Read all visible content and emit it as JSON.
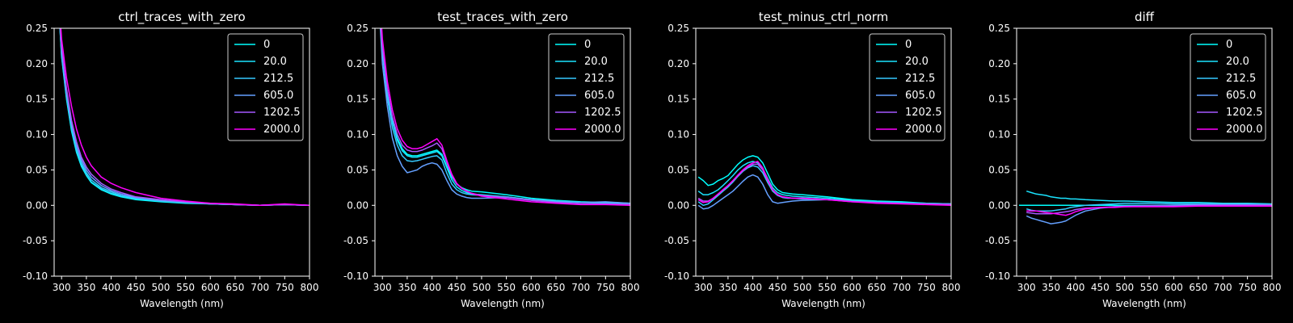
{
  "figure": {
    "background": "#000000",
    "foreground": "#ffffff"
  },
  "legend_entries": [
    "0",
    "20.0",
    "212.5",
    "605.0",
    "1202.5",
    "2000.0"
  ],
  "series_colors": [
    "#00ffff",
    "#1ae4ff",
    "#36c9ff",
    "#64a0ff",
    "#a659ff",
    "#ff00ff"
  ],
  "chart_data": [
    {
      "type": "line",
      "title": "ctrl_traces_with_zero",
      "xlabel": "Wavelength (nm)",
      "ylabel": "",
      "xlim": [
        285,
        800
      ],
      "ylim": [
        -0.1,
        0.25
      ],
      "xticks": [
        300,
        350,
        400,
        450,
        500,
        550,
        600,
        650,
        700,
        750,
        800
      ],
      "yticks": [
        -0.1,
        -0.05,
        0.0,
        0.05,
        0.1,
        0.15,
        0.2,
        0.25
      ],
      "grid": false,
      "legend": "top-right",
      "x": [
        290,
        300,
        310,
        320,
        330,
        340,
        350,
        360,
        380,
        400,
        420,
        450,
        500,
        550,
        600,
        650,
        700,
        750,
        800
      ],
      "series": [
        {
          "name": "0",
          "values": [
            0.33,
            0.21,
            0.15,
            0.105,
            0.075,
            0.055,
            0.042,
            0.032,
            0.022,
            0.016,
            0.012,
            0.008,
            0.005,
            0.003,
            0.002,
            0.001,
            0.0,
            0.001,
            0.0
          ]
        },
        {
          "name": "20.0",
          "values": [
            0.33,
            0.212,
            0.152,
            0.107,
            0.077,
            0.057,
            0.043,
            0.033,
            0.023,
            0.017,
            0.013,
            0.009,
            0.006,
            0.004,
            0.002,
            0.001,
            0.0,
            0.001,
            0.0
          ]
        },
        {
          "name": "212.5",
          "values": [
            0.33,
            0.215,
            0.155,
            0.11,
            0.08,
            0.06,
            0.046,
            0.036,
            0.025,
            0.019,
            0.014,
            0.01,
            0.006,
            0.004,
            0.002,
            0.001,
            0.0,
            0.001,
            0.0
          ]
        },
        {
          "name": "605.0",
          "values": [
            0.33,
            0.22,
            0.16,
            0.115,
            0.085,
            0.064,
            0.05,
            0.04,
            0.028,
            0.021,
            0.016,
            0.011,
            0.007,
            0.004,
            0.002,
            0.001,
            0.0,
            0.001,
            0.0
          ]
        },
        {
          "name": "1202.5",
          "values": [
            0.33,
            0.225,
            0.165,
            0.12,
            0.09,
            0.068,
            0.054,
            0.044,
            0.031,
            0.023,
            0.018,
            0.012,
            0.008,
            0.005,
            0.003,
            0.001,
            0.0,
            0.001,
            0.0
          ]
        },
        {
          "name": "2000.0",
          "values": [
            0.34,
            0.235,
            0.18,
            0.14,
            0.108,
            0.085,
            0.068,
            0.056,
            0.04,
            0.031,
            0.025,
            0.018,
            0.01,
            0.006,
            0.003,
            0.002,
            0.0,
            0.002,
            0.0
          ]
        }
      ]
    },
    {
      "type": "line",
      "title": "test_traces_with_zero",
      "xlabel": "Wavelength (nm)",
      "ylabel": "",
      "xlim": [
        285,
        800
      ],
      "ylim": [
        -0.1,
        0.25
      ],
      "xticks": [
        300,
        350,
        400,
        450,
        500,
        550,
        600,
        650,
        700,
        750,
        800
      ],
      "yticks": [
        -0.1,
        -0.05,
        0.0,
        0.05,
        0.1,
        0.15,
        0.2,
        0.25
      ],
      "grid": false,
      "legend": "top-right",
      "x": [
        290,
        300,
        310,
        320,
        330,
        340,
        350,
        360,
        370,
        380,
        390,
        400,
        410,
        420,
        430,
        440,
        450,
        460,
        470,
        480,
        500,
        550,
        600,
        650,
        700,
        750,
        800
      ],
      "series": [
        {
          "name": "0",
          "values": [
            0.33,
            0.22,
            0.16,
            0.12,
            0.095,
            0.08,
            0.072,
            0.07,
            0.07,
            0.072,
            0.074,
            0.076,
            0.078,
            0.072,
            0.055,
            0.04,
            0.03,
            0.025,
            0.022,
            0.02,
            0.019,
            0.015,
            0.01,
            0.007,
            0.005,
            0.004,
            0.003
          ]
        },
        {
          "name": "20.0",
          "values": [
            0.33,
            0.22,
            0.158,
            0.118,
            0.092,
            0.077,
            0.07,
            0.068,
            0.068,
            0.07,
            0.072,
            0.074,
            0.076,
            0.07,
            0.053,
            0.036,
            0.026,
            0.021,
            0.018,
            0.016,
            0.015,
            0.012,
            0.008,
            0.006,
            0.004,
            0.003,
            0.003
          ]
        },
        {
          "name": "212.5",
          "values": [
            0.33,
            0.215,
            0.152,
            0.11,
            0.085,
            0.07,
            0.063,
            0.062,
            0.063,
            0.065,
            0.067,
            0.069,
            0.07,
            0.064,
            0.045,
            0.03,
            0.022,
            0.018,
            0.016,
            0.015,
            0.014,
            0.012,
            0.008,
            0.006,
            0.004,
            0.004,
            0.003
          ]
        },
        {
          "name": "605.0",
          "values": [
            0.32,
            0.2,
            0.14,
            0.095,
            0.07,
            0.055,
            0.046,
            0.048,
            0.05,
            0.055,
            0.058,
            0.06,
            0.058,
            0.05,
            0.035,
            0.022,
            0.016,
            0.013,
            0.011,
            0.01,
            0.01,
            0.011,
            0.008,
            0.005,
            0.004,
            0.005,
            0.003
          ]
        },
        {
          "name": "1202.5",
          "values": [
            0.33,
            0.225,
            0.165,
            0.125,
            0.1,
            0.085,
            0.078,
            0.076,
            0.076,
            0.078,
            0.081,
            0.084,
            0.088,
            0.08,
            0.06,
            0.042,
            0.03,
            0.024,
            0.02,
            0.017,
            0.014,
            0.011,
            0.007,
            0.004,
            0.002,
            0.002,
            0.001
          ]
        },
        {
          "name": "2000.0",
          "values": [
            0.34,
            0.235,
            0.175,
            0.135,
            0.108,
            0.092,
            0.083,
            0.08,
            0.08,
            0.082,
            0.086,
            0.09,
            0.094,
            0.085,
            0.063,
            0.044,
            0.031,
            0.024,
            0.02,
            0.017,
            0.013,
            0.009,
            0.005,
            0.003,
            0.001,
            0.001,
            0.0
          ]
        }
      ]
    },
    {
      "type": "line",
      "title": "test_minus_ctrl_norm",
      "xlabel": "Wavelength (nm)",
      "ylabel": "",
      "xlim": [
        285,
        800
      ],
      "ylim": [
        -0.1,
        0.25
      ],
      "xticks": [
        300,
        350,
        400,
        450,
        500,
        550,
        600,
        650,
        700,
        750,
        800
      ],
      "yticks": [
        -0.1,
        -0.05,
        0.0,
        0.05,
        0.1,
        0.15,
        0.2,
        0.25
      ],
      "grid": false,
      "legend": "top-right",
      "x": [
        290,
        300,
        310,
        320,
        330,
        340,
        350,
        360,
        370,
        380,
        390,
        400,
        410,
        420,
        430,
        440,
        450,
        460,
        470,
        480,
        500,
        550,
        600,
        650,
        700,
        750,
        800
      ],
      "series": [
        {
          "name": "0",
          "values": [
            0.04,
            0.035,
            0.028,
            0.03,
            0.035,
            0.038,
            0.042,
            0.05,
            0.058,
            0.064,
            0.068,
            0.07,
            0.068,
            0.06,
            0.045,
            0.03,
            0.022,
            0.018,
            0.017,
            0.016,
            0.015,
            0.012,
            0.008,
            0.006,
            0.005,
            0.003,
            0.002
          ]
        },
        {
          "name": "20.0",
          "values": [
            0.02,
            0.015,
            0.015,
            0.018,
            0.022,
            0.028,
            0.035,
            0.042,
            0.05,
            0.056,
            0.06,
            0.062,
            0.06,
            0.052,
            0.038,
            0.025,
            0.018,
            0.015,
            0.014,
            0.013,
            0.012,
            0.01,
            0.007,
            0.005,
            0.004,
            0.003,
            0.002
          ]
        },
        {
          "name": "212.5",
          "values": [
            0.005,
            0.0,
            0.002,
            0.008,
            0.014,
            0.02,
            0.026,
            0.033,
            0.041,
            0.048,
            0.053,
            0.056,
            0.054,
            0.046,
            0.032,
            0.02,
            0.014,
            0.011,
            0.01,
            0.01,
            0.009,
            0.008,
            0.006,
            0.004,
            0.003,
            0.002,
            0.002
          ]
        },
        {
          "name": "605.0",
          "values": [
            0.0,
            -0.005,
            -0.004,
            0.0,
            0.005,
            0.01,
            0.015,
            0.02,
            0.027,
            0.034,
            0.04,
            0.043,
            0.04,
            0.03,
            0.015,
            0.005,
            0.003,
            0.004,
            0.005,
            0.006,
            0.007,
            0.008,
            0.006,
            0.004,
            0.003,
            0.002,
            0.002
          ]
        },
        {
          "name": "1202.5",
          "values": [
            0.01,
            0.006,
            0.006,
            0.01,
            0.016,
            0.022,
            0.028,
            0.035,
            0.042,
            0.049,
            0.054,
            0.058,
            0.058,
            0.05,
            0.035,
            0.022,
            0.015,
            0.012,
            0.011,
            0.01,
            0.01,
            0.008,
            0.005,
            0.004,
            0.003,
            0.002,
            0.001
          ]
        },
        {
          "name": "2000.0",
          "values": [
            0.008,
            0.004,
            0.005,
            0.01,
            0.016,
            0.022,
            0.028,
            0.035,
            0.043,
            0.05,
            0.056,
            0.06,
            0.062,
            0.053,
            0.036,
            0.022,
            0.015,
            0.012,
            0.011,
            0.01,
            0.01,
            0.008,
            0.005,
            0.003,
            0.002,
            0.001,
            0.0
          ]
        }
      ]
    },
    {
      "type": "line",
      "title": "diff",
      "xlabel": "Wavelength (nm)",
      "ylabel": "",
      "xlim": [
        280,
        800
      ],
      "ylim": [
        -0.1,
        0.25
      ],
      "xticks": [
        300,
        350,
        400,
        450,
        500,
        550,
        600,
        650,
        700,
        750,
        800
      ],
      "yticks": [
        -0.1,
        -0.05,
        0.0,
        0.05,
        0.1,
        0.15,
        0.2,
        0.25
      ],
      "grid": false,
      "legend": "top-right",
      "x": [
        285,
        300,
        310,
        320,
        330,
        340,
        350,
        360,
        370,
        380,
        390,
        400,
        420,
        450,
        480,
        500,
        550,
        600,
        650,
        700,
        750,
        800
      ],
      "series": [
        {
          "name": "0",
          "values": [
            0.0,
            0.0,
            0.0,
            0.0,
            0.0,
            0.0,
            0.0,
            0.0,
            0.0,
            0.0,
            0.0,
            0.0,
            0.0,
            0.0,
            0.0,
            0.0,
            0.0,
            0.0,
            0.0,
            0.0,
            0.0,
            0.0
          ]
        },
        {
          "name": "20.0",
          "values": [
            null,
            0.02,
            0.018,
            0.016,
            0.015,
            0.014,
            0.012,
            0.011,
            0.01,
            0.01,
            0.009,
            0.009,
            0.008,
            0.007,
            0.006,
            0.006,
            0.005,
            0.004,
            0.004,
            0.003,
            0.003,
            0.002
          ]
        },
        {
          "name": "212.5",
          "values": [
            null,
            -0.005,
            -0.007,
            -0.008,
            -0.008,
            -0.008,
            -0.008,
            -0.007,
            -0.006,
            -0.005,
            -0.003,
            -0.002,
            0.0,
            0.001,
            0.002,
            0.003,
            0.003,
            0.002,
            0.002,
            0.002,
            0.002,
            0.001
          ]
        },
        {
          "name": "605.0",
          "values": [
            null,
            -0.015,
            -0.018,
            -0.02,
            -0.022,
            -0.024,
            -0.026,
            -0.025,
            -0.024,
            -0.022,
            -0.018,
            -0.014,
            -0.008,
            -0.004,
            -0.002,
            -0.001,
            0.0,
            0.0,
            0.001,
            0.001,
            0.001,
            0.001
          ]
        },
        {
          "name": "1202.5",
          "values": [
            null,
            -0.01,
            -0.011,
            -0.012,
            -0.012,
            -0.012,
            -0.012,
            -0.011,
            -0.01,
            -0.009,
            -0.008,
            -0.006,
            -0.004,
            -0.003,
            -0.002,
            -0.002,
            -0.001,
            -0.001,
            0.0,
            0.0,
            0.0,
            0.0
          ]
        },
        {
          "name": "2000.0",
          "values": [
            null,
            -0.008,
            -0.008,
            -0.008,
            -0.009,
            -0.01,
            -0.011,
            -0.012,
            -0.013,
            -0.014,
            -0.012,
            -0.009,
            -0.005,
            -0.003,
            -0.003,
            -0.002,
            -0.002,
            -0.002,
            -0.001,
            -0.001,
            -0.001,
            -0.001
          ]
        }
      ]
    }
  ]
}
